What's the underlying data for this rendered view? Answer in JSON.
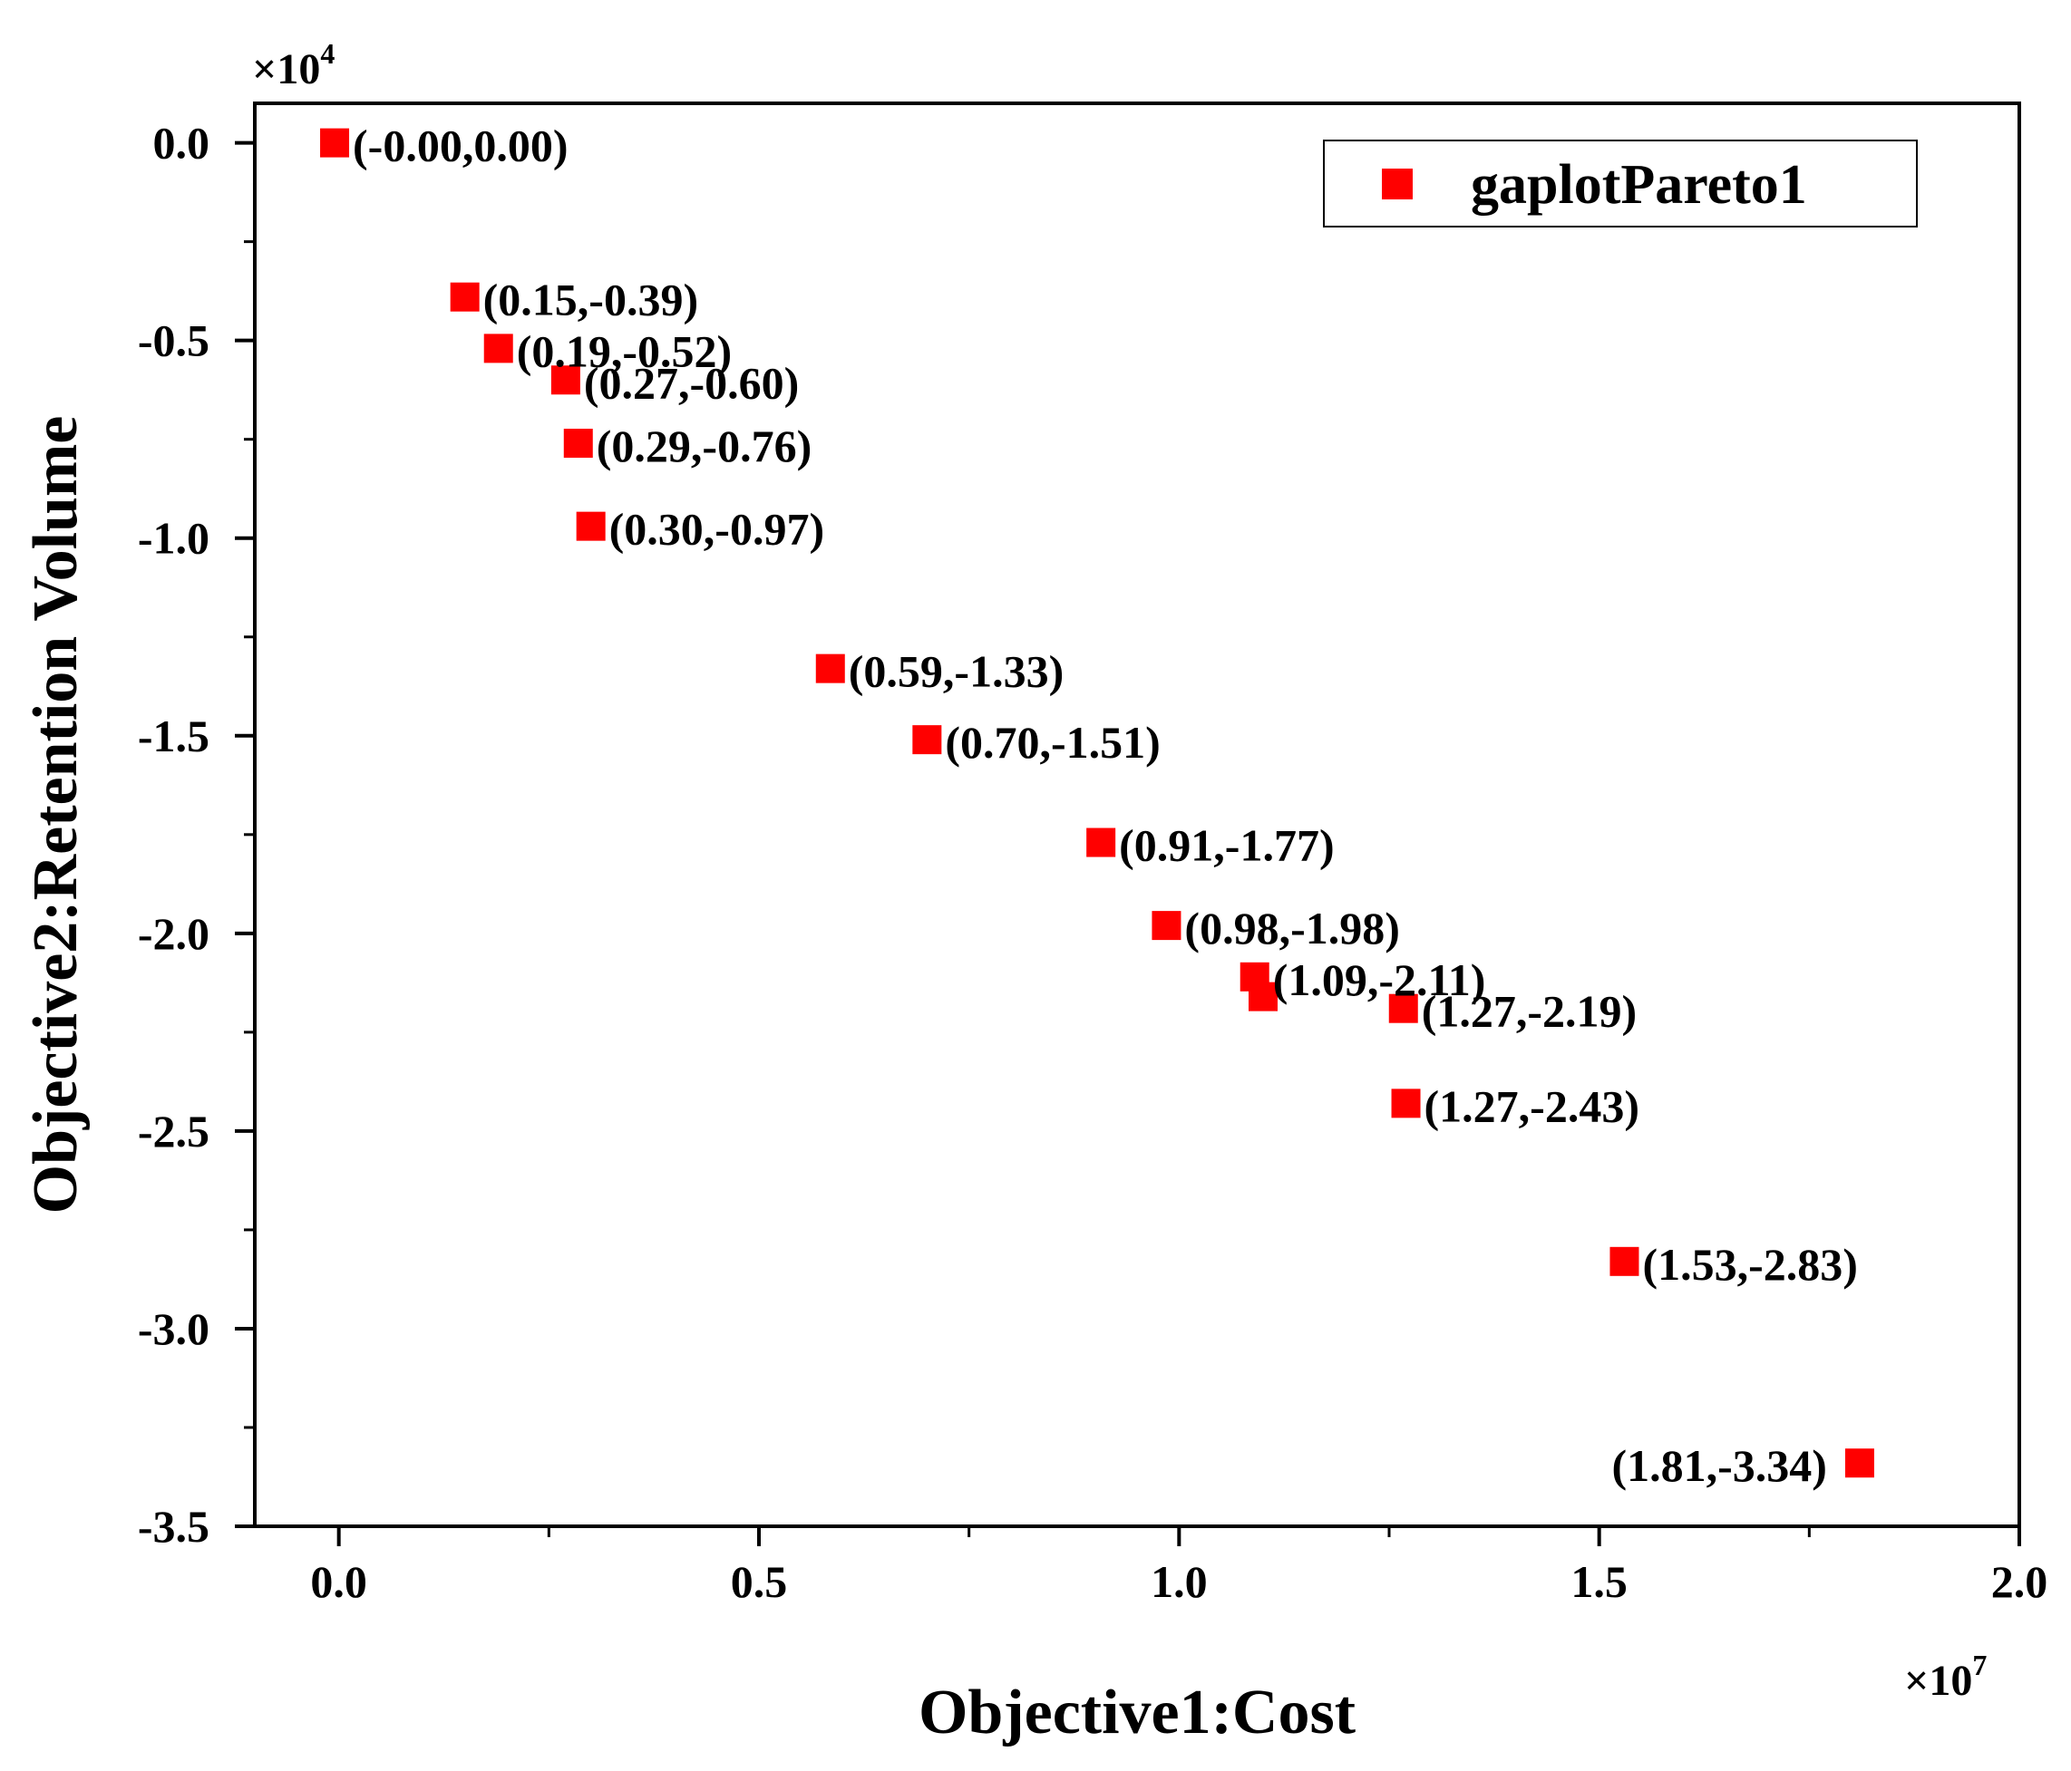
{
  "chart_data": {
    "type": "scatter",
    "xlabel": "Objective1:Cost",
    "ylabel": "Objective2:Retention Volume",
    "x_multiplier": "×10",
    "x_multiplier_exp": "7",
    "y_multiplier": "×10",
    "y_multiplier_exp": "4",
    "xlim": [
      -0.1,
      2.0
    ],
    "ylim": [
      -3.5,
      0.1
    ],
    "x_ticks": [
      0.0,
      0.5,
      1.0,
      1.5,
      2.0
    ],
    "x_tick_labels": [
      "0.0",
      "0.5",
      "1.0",
      "1.5",
      "2.0"
    ],
    "y_ticks": [
      0.0,
      -0.5,
      -1.0,
      -1.5,
      -2.0,
      -2.5,
      -3.0,
      -3.5
    ],
    "y_tick_labels": [
      "0.0",
      "-0.5",
      "-1.0",
      "-1.5",
      "-2.0",
      "-2.5",
      "-3.0",
      "-3.5"
    ],
    "grid": false,
    "legend_position": "top-right",
    "marker_color": "#ff0000",
    "series": [
      {
        "name": "gaplotPareto1",
        "points": [
          {
            "x": -0.005,
            "y": 0.0,
            "label": "(-0.00,0.00)",
            "label_side": "right"
          },
          {
            "x": 0.15,
            "y": -0.39,
            "label": "(0.15,-0.39)",
            "label_side": "right"
          },
          {
            "x": 0.19,
            "y": -0.52,
            "label": "(0.19,-0.52)",
            "label_side": "right"
          },
          {
            "x": 0.27,
            "y": -0.6,
            "label": "(0.27,-0.60)",
            "label_side": "right"
          },
          {
            "x": 0.285,
            "y": -0.76,
            "label": "(0.29,-0.76)",
            "label_side": "right"
          },
          {
            "x": 0.3,
            "y": -0.97,
            "label": "(0.30,-0.97)",
            "label_side": "right"
          },
          {
            "x": 0.585,
            "y": -1.33,
            "label": "(0.59,-1.33)",
            "label_side": "right"
          },
          {
            "x": 0.7,
            "y": -1.51,
            "label": "(0.70,-1.51)",
            "label_side": "right"
          },
          {
            "x": 0.907,
            "y": -1.77,
            "label": "(0.91,-1.77)",
            "label_side": "right"
          },
          {
            "x": 0.985,
            "y": -1.98,
            "label": "(0.98,-1.98)",
            "label_side": "right"
          },
          {
            "x": 1.09,
            "y": -2.11,
            "label": "(1.09,-2.11)",
            "label_side": "right"
          },
          {
            "x": 1.1,
            "y": -2.16,
            "label": "",
            "label_side": "right"
          },
          {
            "x": 1.267,
            "y": -2.19,
            "label": "(1.27,-2.19)",
            "label_side": "right"
          },
          {
            "x": 1.27,
            "y": -2.43,
            "label": "(1.27,-2.43)",
            "label_side": "right"
          },
          {
            "x": 1.53,
            "y": -2.83,
            "label": "(1.53,-2.83)",
            "label_side": "right"
          },
          {
            "x": 1.81,
            "y": -3.34,
            "label": "(1.81,-3.34)",
            "label_side": "left"
          }
        ]
      }
    ]
  }
}
